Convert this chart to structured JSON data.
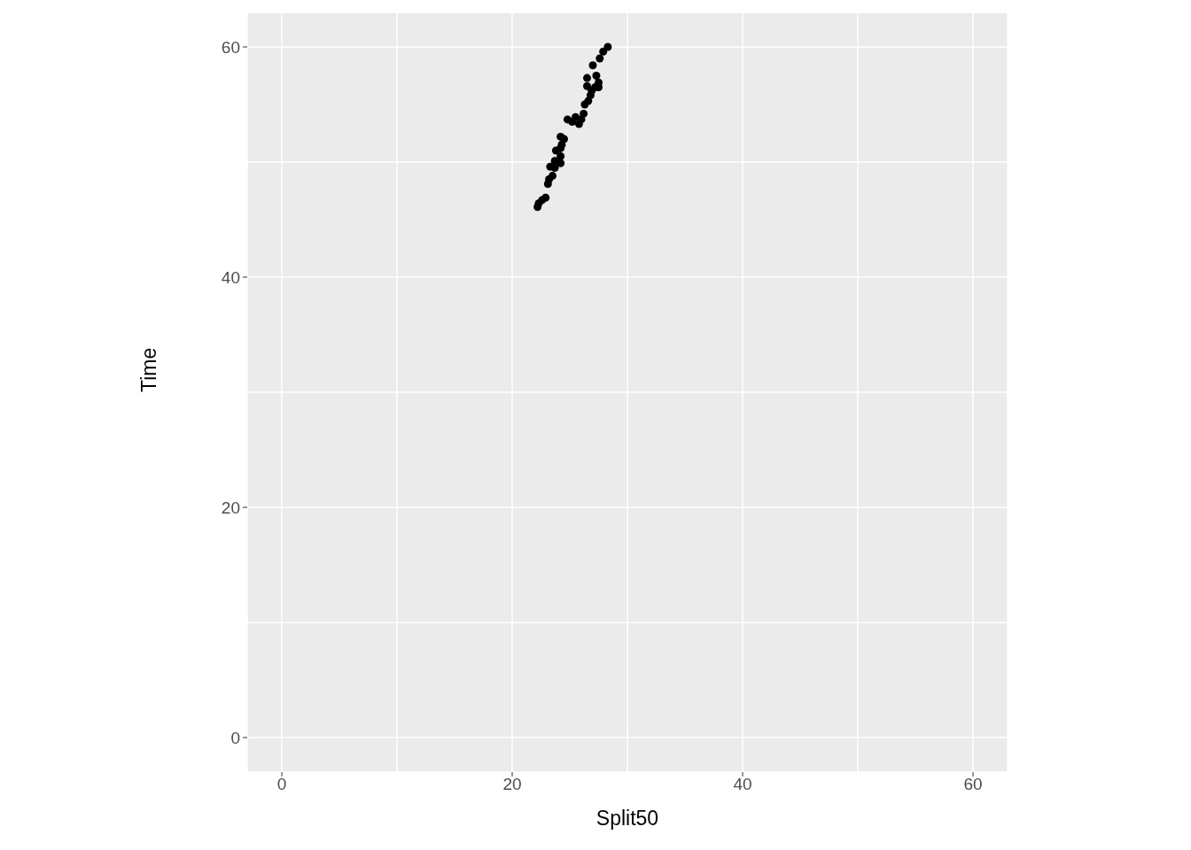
{
  "chart_data": {
    "type": "scatter",
    "xlabel": "Split50",
    "ylabel": "Time",
    "xlim": [
      -3,
      63
    ],
    "ylim": [
      -3,
      63
    ],
    "xticks": [
      0,
      {
        "value": 10,
        "label": null
      },
      20,
      {
        "value": 30,
        "label": null
      },
      40,
      {
        "value": 50,
        "label": null
      },
      60
    ],
    "yticks": [
      0,
      {
        "value": 10,
        "label": null
      },
      20,
      {
        "value": 30,
        "label": null
      },
      40,
      {
        "value": 50,
        "label": null
      },
      60
    ],
    "grid": true,
    "marker": "circle",
    "legend": false,
    "series": [
      {
        "color": "#000000",
        "x": [
          22.2,
          22.3,
          22.6,
          22.9,
          23.1,
          23.2,
          23.5,
          23.3,
          23.7,
          23.7,
          23.8,
          24.2,
          24.2,
          24.3,
          24.2,
          24.5,
          24.2,
          24.8,
          25.2,
          25.5,
          25.8,
          26.0,
          26.2,
          26.3,
          26.6,
          26.8,
          26.9,
          26.5,
          26.5,
          27.3,
          27.5,
          27.5,
          27.2,
          27.0,
          27.6,
          27.9,
          28.3
        ],
        "values": [
          46.1,
          46.4,
          46.7,
          46.9,
          48.1,
          48.5,
          48.8,
          49.6,
          49.5,
          50.1,
          51.0,
          51.2,
          50.5,
          51.5,
          52.2,
          52.0,
          49.9,
          53.7,
          53.5,
          53.9,
          53.3,
          53.7,
          54.2,
          55.0,
          55.3,
          55.8,
          56.2,
          56.6,
          57.3,
          57.5,
          56.9,
          56.5,
          56.5,
          58.4,
          59.0,
          59.6,
          60.0
        ]
      }
    ]
  }
}
